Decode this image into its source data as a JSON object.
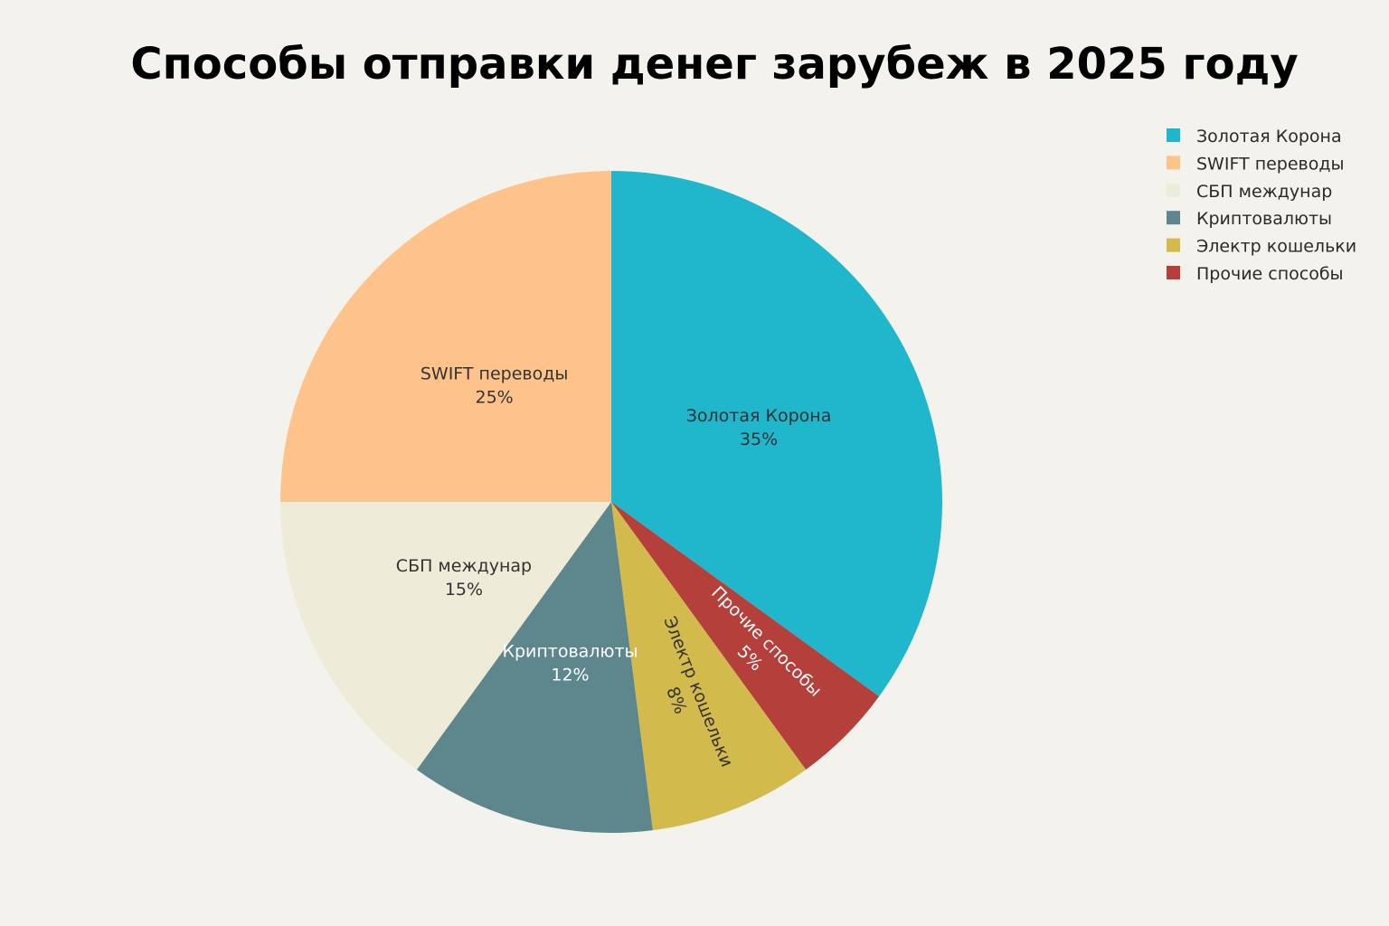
{
  "chart_data": {
    "type": "pie",
    "title": "Способы отправки денег зарубеж в 2025 году",
    "legend_position": "top-right",
    "slices": [
      {
        "label": "Золотая Корона",
        "value": 35,
        "percent_label": "35%",
        "color": "#20b6cc",
        "text_color": "#333333"
      },
      {
        "label": "Прочие способы",
        "value": 5,
        "percent_label": "5%",
        "color": "#b43f3b",
        "text_color": "#ffffff"
      },
      {
        "label": "Электр кошельки",
        "value": 8,
        "percent_label": "8%",
        "color": "#d2bb4c",
        "text_color": "#333333"
      },
      {
        "label": "Криптовалюты",
        "value": 12,
        "percent_label": "12%",
        "color": "#5d878d",
        "text_color": "#ffffff"
      },
      {
        "label": "СБП междунар",
        "value": 15,
        "percent_label": "15%",
        "color": "#eeebd9",
        "text_color": "#333333"
      },
      {
        "label": "SWIFT переводы",
        "value": 25,
        "percent_label": "25%",
        "color": "#fdc38b",
        "text_color": "#333333"
      }
    ],
    "legend": [
      {
        "label": "Золотая Корона",
        "color": "#20b6cc"
      },
      {
        "label": "SWIFT переводы",
        "color": "#fdc38b"
      },
      {
        "label": "СБП междунар",
        "color": "#eeebd9"
      },
      {
        "label": "Криптовалюты",
        "color": "#5d878d"
      },
      {
        "label": "Электр кошельки",
        "color": "#d2bb4c"
      },
      {
        "label": "Прочие способы",
        "color": "#b43f3b"
      }
    ]
  }
}
